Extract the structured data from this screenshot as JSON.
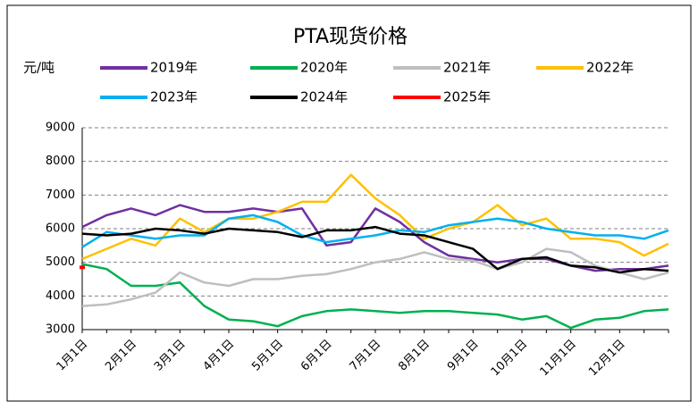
{
  "chart_data": {
    "type": "line",
    "title": "PTA现货价格",
    "y_label": "元/吨",
    "categories": [
      "1月1日",
      null,
      "2月1日",
      null,
      "3月1日",
      null,
      "4月1日",
      null,
      "5月1日",
      null,
      "6月1日",
      null,
      "7月1日",
      null,
      "8月1日",
      null,
      "9月1日",
      null,
      "10月1日",
      null,
      "11月1日",
      null,
      "12月1日",
      null,
      null
    ],
    "ylim": [
      3000,
      9000
    ],
    "yticks": [
      3000,
      4000,
      5000,
      6000,
      7000,
      8000,
      9000
    ],
    "grid": true,
    "series": [
      {
        "name": "2019年",
        "color": "#7030a0",
        "values": [
          6050,
          6400,
          6600,
          6400,
          6700,
          6500,
          6500,
          6600,
          6500,
          6600,
          5500,
          5600,
          6600,
          6200,
          5600,
          5200,
          5100,
          5000,
          5100,
          5100,
          4900,
          4750,
          4800,
          4800,
          4900
        ]
      },
      {
        "name": "2020年",
        "color": "#00b050",
        "values": [
          4950,
          4800,
          4300,
          4300,
          4400,
          3700,
          3300,
          3250,
          3100,
          3400,
          3550,
          3600,
          3550,
          3500,
          3550,
          3550,
          3500,
          3450,
          3300,
          3400,
          3050,
          3300,
          3350,
          3550,
          3600
        ]
      },
      {
        "name": "2021年",
        "color": "#bfbfbf",
        "values": [
          3700,
          3750,
          3900,
          4100,
          4700,
          4400,
          4300,
          4500,
          4500,
          4600,
          4650,
          4800,
          5000,
          5100,
          5300,
          5100,
          5050,
          4800,
          5000,
          5400,
          5300,
          4900,
          4700,
          4500,
          4700
        ]
      },
      {
        "name": "2022年",
        "color": "#ffc000",
        "values": [
          5100,
          5400,
          5700,
          5500,
          6300,
          5900,
          6300,
          6300,
          6500,
          6800,
          6800,
          7600,
          6900,
          6400,
          5700,
          6000,
          6200,
          6700,
          6100,
          6300,
          5700,
          5700,
          5600,
          5200,
          5550
        ]
      },
      {
        "name": "2023年",
        "color": "#00b0f0",
        "values": [
          5450,
          5900,
          5800,
          5700,
          5800,
          5800,
          6300,
          6400,
          6200,
          5800,
          5600,
          5700,
          5800,
          5950,
          5900,
          6100,
          6200,
          6300,
          6200,
          6000,
          5900,
          5800,
          5800,
          5700,
          5950
        ]
      },
      {
        "name": "2024年",
        "color": "#000000",
        "values": [
          5850,
          5800,
          5850,
          6000,
          5950,
          5850,
          6000,
          5950,
          5900,
          5750,
          5950,
          5950,
          6050,
          5850,
          5800,
          5600,
          5400,
          4800,
          5100,
          5150,
          4900,
          4850,
          4700,
          4800,
          4750
        ]
      },
      {
        "name": "2025年",
        "color": "#ff0000",
        "values": [
          4850,
          null,
          null,
          null,
          null,
          null,
          null,
          null,
          null,
          null,
          null,
          null,
          null,
          null,
          null,
          null,
          null,
          null,
          null,
          null,
          null,
          null,
          null,
          null,
          null
        ]
      }
    ]
  }
}
